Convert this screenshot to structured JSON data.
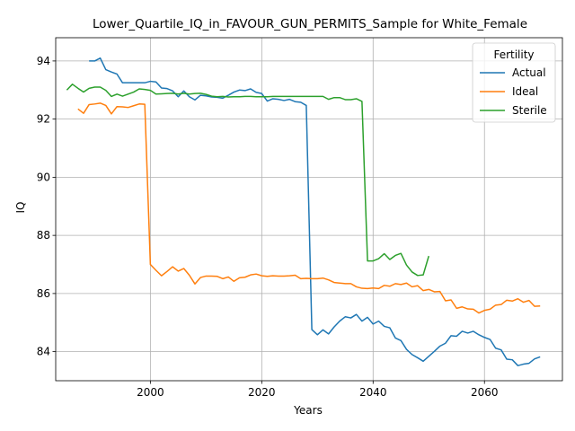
{
  "chart_data": {
    "type": "line",
    "title": "Lower_Quartile_IQ_in_FAVOUR_GUN_PERMITS_Sample for White_Female",
    "xlabel": "Years",
    "ylabel": "IQ",
    "xlim": [
      1983,
      2074
    ],
    "ylim": [
      83.0,
      94.8
    ],
    "xticks": [
      2000,
      2020,
      2040,
      2060
    ],
    "yticks": [
      84,
      86,
      88,
      90,
      92,
      94
    ],
    "grid": true,
    "legend": {
      "title": "Fertility",
      "placement": "top-right"
    },
    "series": [
      {
        "name": "Actual",
        "color": "#1f77b4",
        "x": [
          1989,
          1990,
          1991,
          1992,
          1993,
          1994,
          1995,
          1996,
          1997,
          1998,
          1999,
          2000,
          2001,
          2002,
          2003,
          2004,
          2005,
          2006,
          2007,
          2008,
          2009,
          2010,
          2011,
          2012,
          2013,
          2014,
          2015,
          2016,
          2017,
          2018,
          2019,
          2020,
          2021,
          2022,
          2023,
          2024,
          2025,
          2026,
          2027,
          2028,
          2029,
          2030,
          2031,
          2032,
          2033,
          2034,
          2035,
          2036,
          2037,
          2038,
          2039,
          2040,
          2041,
          2042,
          2043,
          2044,
          2045,
          2046,
          2047,
          2048,
          2049,
          2050,
          2051,
          2052,
          2053,
          2054,
          2055,
          2056,
          2057,
          2058,
          2059,
          2060,
          2061,
          2062,
          2063,
          2064,
          2065,
          2066,
          2067,
          2068,
          2069,
          2070
        ],
        "values": [
          94.0,
          94.0,
          94.1,
          93.7,
          93.62,
          93.55,
          93.25,
          93.25,
          93.25,
          93.25,
          93.25,
          93.3,
          93.28,
          93.07,
          93.05,
          92.97,
          92.77,
          92.97,
          92.77,
          92.66,
          92.82,
          92.8,
          92.76,
          92.75,
          92.72,
          92.82,
          92.93,
          93.0,
          92.98,
          93.04,
          92.92,
          92.88,
          92.62,
          92.7,
          92.68,
          92.64,
          92.68,
          92.6,
          92.58,
          92.47,
          84.76,
          84.58,
          84.75,
          84.61,
          84.85,
          85.05,
          85.2,
          85.16,
          85.28,
          85.05,
          85.18,
          84.95,
          85.05,
          84.87,
          84.82,
          84.47,
          84.38,
          84.08,
          83.9,
          83.79,
          83.67,
          83.84,
          84.01,
          84.19,
          84.29,
          84.55,
          84.53,
          84.7,
          84.64,
          84.7,
          84.58,
          84.49,
          84.42,
          84.12,
          84.06,
          83.74,
          83.72,
          83.52,
          83.57,
          83.6,
          83.75,
          83.82
        ]
      },
      {
        "name": "Ideal",
        "color": "#ff7f0e",
        "x": [
          1987,
          1988,
          1989,
          1990,
          1991,
          1992,
          1993,
          1994,
          1995,
          1996,
          1997,
          1998,
          1999,
          2000,
          2001,
          2002,
          2003,
          2004,
          2005,
          2006,
          2007,
          2008,
          2009,
          2010,
          2011,
          2012,
          2013,
          2014,
          2015,
          2016,
          2017,
          2018,
          2019,
          2020,
          2021,
          2022,
          2023,
          2024,
          2025,
          2026,
          2027,
          2028,
          2029,
          2030,
          2031,
          2032,
          2033,
          2034,
          2035,
          2036,
          2037,
          2038,
          2039,
          2040,
          2041,
          2042,
          2043,
          2044,
          2045,
          2046,
          2047,
          2048,
          2049,
          2050,
          2051,
          2052,
          2053,
          2054,
          2055,
          2056,
          2057,
          2058,
          2059,
          2060,
          2061,
          2062,
          2063,
          2064,
          2065,
          2066,
          2067,
          2068,
          2069,
          2070
        ],
        "values": [
          92.35,
          92.2,
          92.5,
          92.52,
          92.55,
          92.47,
          92.18,
          92.43,
          92.42,
          92.4,
          92.46,
          92.52,
          92.51,
          87.0,
          86.8,
          86.61,
          86.76,
          86.92,
          86.77,
          86.86,
          86.63,
          86.33,
          86.55,
          86.6,
          86.6,
          86.59,
          86.51,
          86.57,
          86.42,
          86.54,
          86.56,
          86.64,
          86.67,
          86.61,
          86.59,
          86.61,
          86.6,
          86.6,
          86.61,
          86.63,
          86.51,
          86.52,
          86.51,
          86.51,
          86.53,
          86.47,
          86.38,
          86.36,
          86.34,
          86.34,
          86.23,
          86.18,
          86.17,
          86.19,
          86.17,
          86.28,
          86.25,
          86.34,
          86.31,
          86.36,
          86.23,
          86.27,
          86.1,
          86.14,
          86.06,
          86.07,
          85.75,
          85.78,
          85.49,
          85.54,
          85.47,
          85.46,
          85.33,
          85.42,
          85.46,
          85.6,
          85.62,
          85.77,
          85.74,
          85.82,
          85.7,
          85.76,
          85.56,
          85.57
        ]
      },
      {
        "name": "Sterile",
        "color": "#2ca02c",
        "x": [
          1985,
          1986,
          1987,
          1988,
          1989,
          1990,
          1991,
          1992,
          1993,
          1994,
          1995,
          1996,
          1997,
          1998,
          1999,
          2000,
          2001,
          2002,
          2003,
          2004,
          2005,
          2006,
          2007,
          2008,
          2009,
          2010,
          2011,
          2012,
          2013,
          2014,
          2015,
          2016,
          2017,
          2018,
          2019,
          2020,
          2021,
          2022,
          2023,
          2024,
          2025,
          2026,
          2027,
          2028,
          2029,
          2030,
          2031,
          2032,
          2033,
          2034,
          2035,
          2036,
          2037,
          2038,
          2039,
          2040,
          2041,
          2042,
          2043,
          2044,
          2045,
          2046,
          2047,
          2048,
          2049,
          2050
        ],
        "values": [
          93.0,
          93.2,
          93.06,
          92.93,
          93.06,
          93.1,
          93.1,
          92.99,
          92.78,
          92.86,
          92.79,
          92.86,
          92.93,
          93.04,
          93.02,
          92.99,
          92.86,
          92.87,
          92.88,
          92.89,
          92.86,
          92.89,
          92.86,
          92.88,
          92.89,
          92.85,
          92.79,
          92.77,
          92.78,
          92.76,
          92.77,
          92.77,
          92.78,
          92.78,
          92.77,
          92.77,
          92.77,
          92.78,
          92.78,
          92.78,
          92.78,
          92.78,
          92.78,
          92.78,
          92.78,
          92.78,
          92.78,
          92.68,
          92.74,
          92.74,
          92.67,
          92.67,
          92.7,
          92.61,
          87.12,
          87.12,
          87.2,
          87.37,
          87.17,
          87.31,
          87.38,
          86.98,
          86.74,
          86.62,
          86.64,
          87.29
        ]
      }
    ]
  }
}
